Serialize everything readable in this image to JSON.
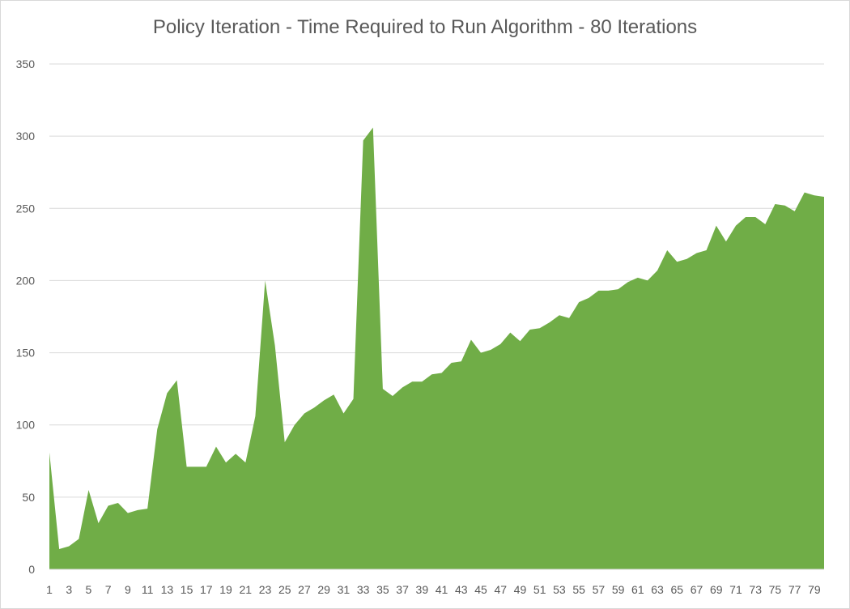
{
  "chart_data": {
    "type": "area",
    "title": "Policy Iteration - Time Required to Run Algorithm - 80 Iterations",
    "xlabel": "",
    "ylabel": "",
    "ylim": [
      0,
      350
    ],
    "y_ticks": [
      0,
      50,
      100,
      150,
      200,
      250,
      300,
      350
    ],
    "x_tick_labels": [
      "1",
      "3",
      "5",
      "7",
      "9",
      "11",
      "13",
      "15",
      "17",
      "19",
      "21",
      "23",
      "25",
      "27",
      "29",
      "31",
      "33",
      "35",
      "37",
      "39",
      "41",
      "43",
      "45",
      "47",
      "49",
      "51",
      "53",
      "55",
      "57",
      "59",
      "61",
      "63",
      "65",
      "67",
      "69",
      "71",
      "73",
      "75",
      "77",
      "79"
    ],
    "grid": true,
    "legend": "none",
    "series": [
      {
        "color": "#70ad47",
        "x": [
          1,
          2,
          3,
          4,
          5,
          6,
          7,
          8,
          9,
          10,
          11,
          12,
          13,
          14,
          15,
          16,
          17,
          18,
          19,
          20,
          21,
          22,
          23,
          24,
          25,
          26,
          27,
          28,
          29,
          30,
          31,
          32,
          33,
          34,
          35,
          36,
          37,
          38,
          39,
          40,
          41,
          42,
          43,
          44,
          45,
          46,
          47,
          48,
          49,
          50,
          51,
          52,
          53,
          54,
          55,
          56,
          57,
          58,
          59,
          60,
          61,
          62,
          63,
          64,
          65,
          66,
          67,
          68,
          69,
          70,
          71,
          72,
          73,
          74,
          75,
          76,
          77,
          78,
          79,
          80
        ],
        "values": [
          81,
          14,
          16,
          21,
          55,
          32,
          44,
          46,
          39,
          41,
          42,
          97,
          122,
          131,
          71,
          71,
          71,
          85,
          74,
          80,
          74,
          106,
          200,
          155,
          88,
          100,
          108,
          112,
          117,
          121,
          108,
          118,
          297,
          306,
          125,
          120,
          126,
          130,
          130,
          135,
          136,
          143,
          144,
          159,
          150,
          152,
          156,
          164,
          158,
          166,
          167,
          171,
          176,
          174,
          185,
          188,
          193,
          193,
          194,
          199,
          202,
          200,
          207,
          221,
          213,
          215,
          219,
          221,
          238,
          227,
          238,
          244,
          244,
          239,
          253,
          252,
          248,
          261,
          259,
          258
        ]
      }
    ]
  }
}
